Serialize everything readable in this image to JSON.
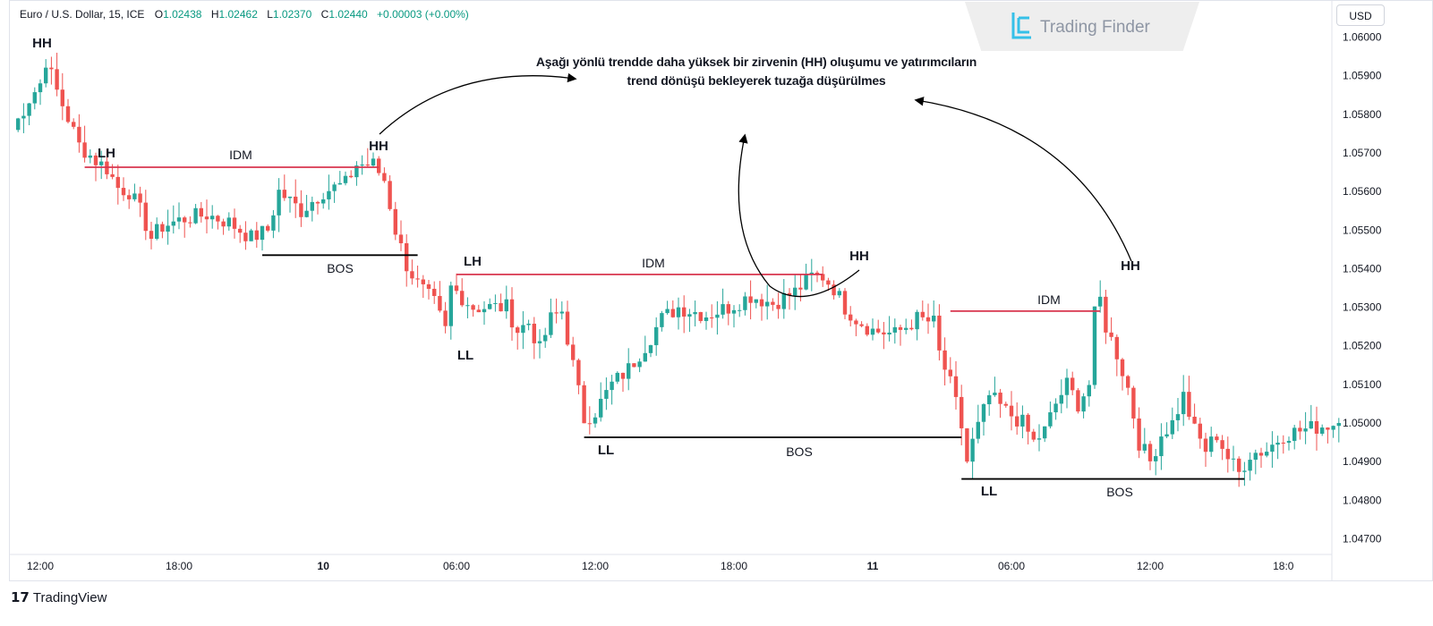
{
  "header": {
    "symbol": "Euro / U.S. Dollar, 15, ICE",
    "open_label": "O",
    "open": "1.02438",
    "high_label": "H",
    "high": "1.02462",
    "low_label": "L",
    "low": "1.02370",
    "close_label": "C",
    "close": "1.02440",
    "change": "+0.00003 (+0.00%)",
    "currency": "USD"
  },
  "watermark": {
    "text": "Trading Finder"
  },
  "branding": {
    "tradingview": "TradingView"
  },
  "headline": {
    "line1": "Aşağı yönlü trendde daha yüksek bir zirvenin (HH) oluşumu ve yatırımcıların",
    "line2": "trend dönüşü bekleyerek tuzağa düşürülmes"
  },
  "annotations": {
    "hh": "HH",
    "lh": "LH",
    "ll": "LL",
    "idm": "IDM",
    "bos": "BOS"
  },
  "colors": {
    "bull": "#26a69a",
    "bear": "#ef5350",
    "idm_line": "#d8364f",
    "bos_line": "#000000",
    "positive_text": "#089981"
  },
  "chart_data": {
    "type": "candlestick",
    "title": "Euro / U.S. Dollar, 15, ICE",
    "y_unit": "USD",
    "ylim": [
      1.0465,
      1.0605
    ],
    "y_ticks": [
      1.047,
      1.048,
      1.049,
      1.05,
      1.051,
      1.052,
      1.053,
      1.054,
      1.055,
      1.056,
      1.057,
      1.058,
      1.059,
      1.06
    ],
    "y_tick_labels": [
      "1.04700",
      "1.04800",
      "1.04900",
      "1.05000",
      "1.05100",
      "1.05200",
      "1.05300",
      "1.05400",
      "1.05500",
      "1.05600",
      "1.05700",
      "1.05800",
      "1.05900",
      "1.06000"
    ],
    "x_tick_labels": [
      "12:00",
      "18:00",
      "10",
      "06:00",
      "12:00",
      "18:00",
      "11",
      "06:00",
      "12:00",
      "18:0"
    ],
    "x_tick_index": [
      5,
      30,
      56,
      80,
      105,
      130,
      155,
      180,
      205,
      229
    ],
    "x_tick_bold": [
      false,
      false,
      true,
      false,
      false,
      false,
      true,
      false,
      false,
      false
    ],
    "path": [
      [
        0,
        1.0576
      ],
      [
        3,
        1.0584
      ],
      [
        5,
        1.0588
      ],
      [
        6,
        1.0594
      ],
      [
        8,
        1.0586
      ],
      [
        12,
        1.0572
      ],
      [
        15,
        1.0568
      ],
      [
        17,
        1.0566
      ],
      [
        19,
        1.0561
      ],
      [
        21,
        1.056
      ],
      [
        23,
        1.0555
      ],
      [
        25,
        1.0548
      ],
      [
        27,
        1.0551
      ],
      [
        31,
        1.0553
      ],
      [
        35,
        1.0554
      ],
      [
        39,
        1.0552
      ],
      [
        43,
        1.0548
      ],
      [
        46,
        1.055
      ],
      [
        48,
        1.056
      ],
      [
        52,
        1.0555
      ],
      [
        56,
        1.056
      ],
      [
        60,
        1.0562
      ],
      [
        62,
        1.0567
      ],
      [
        65,
        1.0567
      ],
      [
        67,
        1.0563
      ],
      [
        69,
        1.055
      ],
      [
        71,
        1.0541
      ],
      [
        73,
        1.0536
      ],
      [
        76,
        1.0531
      ],
      [
        78,
        1.0524
      ],
      [
        79,
        1.0535
      ],
      [
        80,
        1.0534
      ],
      [
        83,
        1.053
      ],
      [
        86,
        1.053
      ],
      [
        89,
        1.053
      ],
      [
        91,
        1.0524
      ],
      [
        93,
        1.0526
      ],
      [
        95,
        1.0519
      ],
      [
        97,
        1.0527
      ],
      [
        99,
        1.0529
      ],
      [
        101,
        1.0515
      ],
      [
        102,
        1.0508
      ],
      [
        103,
        1.0501
      ],
      [
        105,
        1.0503
      ],
      [
        108,
        1.051
      ],
      [
        111,
        1.0514
      ],
      [
        114,
        1.052
      ],
      [
        117,
        1.0527
      ],
      [
        120,
        1.053
      ],
      [
        125,
        1.0528
      ],
      [
        129,
        1.053
      ],
      [
        133,
        1.0533
      ],
      [
        137,
        1.0531
      ],
      [
        141,
        1.0534
      ],
      [
        144,
        1.0538
      ],
      [
        146,
        1.0538
      ],
      [
        148,
        1.0535
      ],
      [
        150,
        1.053
      ],
      [
        152,
        1.0527
      ],
      [
        155,
        1.0524
      ],
      [
        159,
        1.0523
      ],
      [
        163,
        1.0527
      ],
      [
        166,
        1.0526
      ],
      [
        167,
        1.0518
      ],
      [
        169,
        1.051
      ],
      [
        170,
        1.0505
      ],
      [
        171,
        1.0499
      ],
      [
        172,
        1.049
      ],
      [
        173,
        1.0495
      ],
      [
        176,
        1.0507
      ],
      [
        179,
        1.0503
      ],
      [
        182,
        1.05
      ],
      [
        184,
        1.0495
      ],
      [
        186,
        1.0498
      ],
      [
        188,
        1.0505
      ],
      [
        190,
        1.051
      ],
      [
        192,
        1.0505
      ],
      [
        194,
        1.051
      ],
      [
        195,
        1.0528
      ],
      [
        196,
        1.0532
      ],
      [
        197,
        1.0525
      ],
      [
        199,
        1.0518
      ],
      [
        201,
        1.0509
      ],
      [
        203,
        1.0495
      ],
      [
        205,
        1.049
      ],
      [
        207,
        1.0497
      ],
      [
        209,
        1.05
      ],
      [
        211,
        1.0507
      ],
      [
        213,
        1.0498
      ],
      [
        215,
        1.0493
      ],
      [
        217,
        1.0497
      ],
      [
        219,
        1.0491
      ],
      [
        221,
        1.0487
      ],
      [
        223,
        1.0492
      ],
      [
        226,
        1.0493
      ],
      [
        229,
        1.0497
      ],
      [
        232,
        1.0498
      ],
      [
        235,
        1.0499
      ],
      [
        239,
        1.05
      ]
    ],
    "levels": [
      {
        "type": "IDM",
        "from_index": 13,
        "to_index": 66,
        "price": 1.05663
      },
      {
        "type": "BOS",
        "from_index": 45,
        "to_index": 73,
        "price": 1.05435
      },
      {
        "type": "IDM",
        "from_index": 80,
        "to_index": 146,
        "price": 1.05385
      },
      {
        "type": "BOS",
        "from_index": 103,
        "to_index": 171,
        "price": 1.04963
      },
      {
        "type": "IDM",
        "from_index": 169,
        "to_index": 196,
        "price": 1.0529
      },
      {
        "type": "BOS",
        "from_index": 171,
        "to_index": 222,
        "price": 1.04855
      }
    ],
    "swing_labels": [
      {
        "text": "HH",
        "index": 5,
        "price": 1.0594
      },
      {
        "text": "LH",
        "index": 16,
        "price": 1.0566
      },
      {
        "text": "HH",
        "index": 65,
        "price": 1.0567
      },
      {
        "text": "LH",
        "index": 80,
        "price": 1.0538
      },
      {
        "text": "LL",
        "index": 78,
        "price": 1.0524
      },
      {
        "text": "HH",
        "index": 146,
        "price": 1.0538
      },
      {
        "text": "LL",
        "index": 103,
        "price": 1.0496
      },
      {
        "text": "HH",
        "index": 196,
        "price": 1.0533
      },
      {
        "text": "LL",
        "index": 171,
        "price": 1.0486
      }
    ],
    "grid": false,
    "legend": "top-left"
  }
}
